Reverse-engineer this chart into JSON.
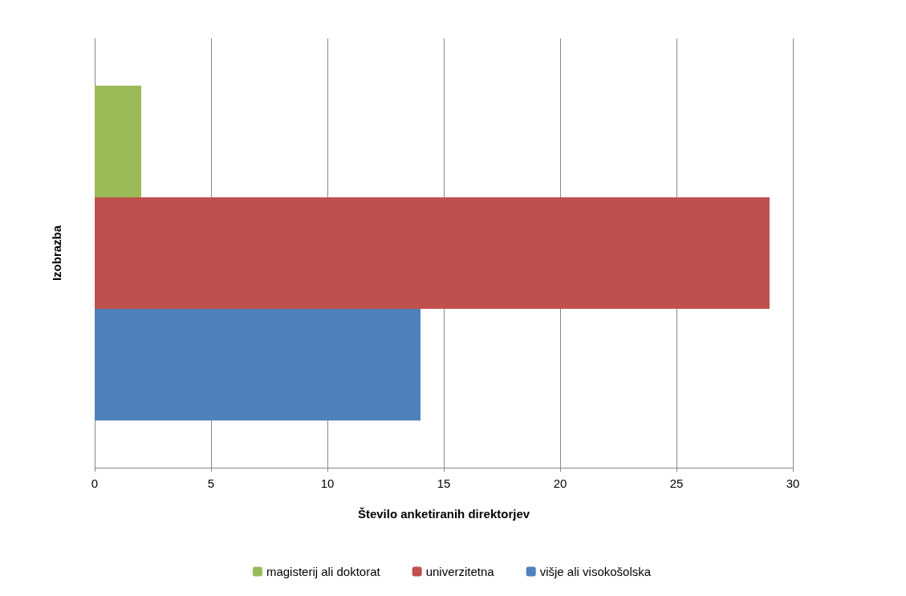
{
  "chart_data": {
    "type": "bar",
    "orientation": "horizontal",
    "xlabel": "Število anketiranih direktorjev",
    "ylabel": "Izobrazba",
    "categories": [
      null
    ],
    "series": [
      {
        "name": "magisterij ali doktorat",
        "color": "#9bbb59",
        "values": [
          2
        ]
      },
      {
        "name": "univerzitetna",
        "color": "#c0504d",
        "values": [
          29
        ]
      },
      {
        "name": "višje ali visokošolska",
        "color": "#4f81bd",
        "values": [
          14
        ]
      }
    ],
    "xlim": [
      0,
      30
    ],
    "xticks": [
      0,
      5,
      10,
      15,
      20,
      25,
      30
    ],
    "grid": "x",
    "legend": "bottom"
  }
}
